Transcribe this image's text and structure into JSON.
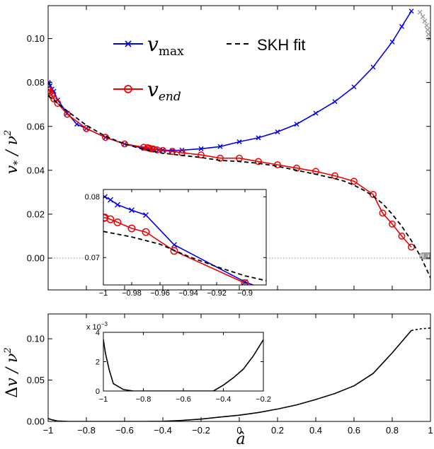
{
  "chart_data": [
    {
      "type": "line",
      "panel": "main",
      "ylabel": "v_* / ν²",
      "xlim": [
        -1,
        1
      ],
      "ylim": [
        -0.0145,
        0.115
      ],
      "xticks": [
        -1,
        -0.8,
        -0.6,
        -0.4,
        -0.2,
        0,
        0.2,
        0.4,
        0.6,
        0.8,
        1
      ],
      "yticks": [
        0.0,
        0.02,
        0.04,
        0.06,
        0.08,
        0.1
      ],
      "ytick_labels": [
        "0.00",
        "0.02",
        "0.04",
        "0.06",
        "0.08",
        "0.10"
      ],
      "reference_line": {
        "y": 0,
        "style": "dotted",
        "color": "#555555"
      },
      "legend": {
        "vmax_base": "v",
        "vmax_sub": "max",
        "vend_base": "v",
        "vend_sub": "end",
        "fit": "SKH fit"
      },
      "series": [
        {
          "key": "vmax",
          "color": "#0000ee",
          "marker": "x",
          "x": [
            -0.999,
            -0.995,
            -0.99,
            -0.98,
            -0.97,
            -0.95,
            -0.9,
            -0.85,
            -0.8,
            -0.7,
            -0.6,
            -0.5,
            -0.45,
            -0.42,
            -0.4,
            -0.35,
            -0.3,
            -0.2,
            -0.1,
            0.0,
            0.1,
            0.2,
            0.3,
            0.4,
            0.5,
            0.6,
            0.7,
            0.8,
            0.85,
            0.9
          ],
          "y": [
            0.08,
            0.0795,
            0.0785,
            0.077,
            0.076,
            0.072,
            0.066,
            0.061,
            0.059,
            0.055,
            0.052,
            0.05,
            0.0495,
            0.0493,
            0.0492,
            0.049,
            0.0492,
            0.0498,
            0.0508,
            0.053,
            0.0548,
            0.0575,
            0.061,
            0.066,
            0.0713,
            0.078,
            0.087,
            0.0985,
            0.1055,
            0.1125
          ]
        },
        {
          "key": "vend",
          "color": "#ee0000",
          "marker": "o",
          "x": [
            -0.999,
            -0.995,
            -0.99,
            -0.98,
            -0.97,
            -0.95,
            -0.9,
            -0.8,
            -0.7,
            -0.6,
            -0.5,
            -0.48,
            -0.47,
            -0.46,
            -0.45,
            -0.43,
            -0.4,
            -0.35,
            -0.3,
            -0.2,
            -0.1,
            0.0,
            0.1,
            0.2,
            0.3,
            0.4,
            0.5,
            0.6,
            0.7,
            0.75,
            0.8,
            0.85,
            0.9
          ],
          "y": [
            0.0765,
            0.0765,
            0.0755,
            0.074,
            0.0725,
            0.0705,
            0.0655,
            0.059,
            0.055,
            0.052,
            0.0505,
            0.0503,
            0.05,
            0.0498,
            0.0497,
            0.0493,
            0.049,
            0.0486,
            0.048,
            0.047,
            0.0455,
            0.0455,
            0.044,
            0.0425,
            0.041,
            0.0395,
            0.0375,
            0.035,
            0.029,
            0.0205,
            0.0155,
            0.01,
            0.005
          ]
        },
        {
          "key": "skh",
          "color": "#000000",
          "style": "dashed",
          "x": [
            -1.0,
            -0.95,
            -0.9,
            -0.8,
            -0.7,
            -0.6,
            -0.5,
            -0.4,
            -0.3,
            -0.2,
            -0.1,
            0.0,
            0.1,
            0.2,
            0.3,
            0.4,
            0.5,
            0.55,
            0.6,
            0.65,
            0.7,
            0.75,
            0.8,
            0.85,
            0.9,
            0.95,
            1.0
          ],
          "y": [
            0.074,
            0.0705,
            0.067,
            0.0605,
            0.0555,
            0.052,
            0.0495,
            0.0478,
            0.0468,
            0.0458,
            0.0445,
            0.044,
            0.0432,
            0.0418,
            0.04,
            0.0382,
            0.0362,
            0.035,
            0.0332,
            0.031,
            0.0282,
            0.0248,
            0.02,
            0.0145,
            0.008,
            0.0005,
            -0.009
          ]
        },
        {
          "key": "vmax_beyond",
          "color": "#999999",
          "marker": "x",
          "x": [
            0.945,
            0.96,
            0.97,
            0.98,
            0.985,
            0.99,
            0.995
          ],
          "y": [
            0.112,
            0.11,
            0.108,
            0.106,
            0.104,
            0.102,
            0.1
          ]
        },
        {
          "key": "vend_beyond",
          "color": "#999999",
          "marker": "o",
          "x": [
            0.96,
            0.97,
            0.98,
            0.985,
            0.99,
            0.995
          ],
          "y": [
            0.001,
            0.001,
            0.001,
            0.001,
            0.001,
            0.001
          ]
        }
      ]
    },
    {
      "type": "line",
      "panel": "inset-main",
      "xlim": [
        -1,
        -0.885
      ],
      "ylim": [
        0.0655,
        0.0812
      ],
      "xticks": [
        -1,
        -0.98,
        -0.96,
        -0.94,
        -0.92,
        -0.9
      ],
      "yticks": [
        0.07,
        0.08
      ],
      "ytick_labels": [
        "0.07",
        "0.08"
      ],
      "series": [
        {
          "key": "vmax",
          "color": "#0000ee",
          "marker": "x",
          "x": [
            -0.999,
            -0.995,
            -0.99,
            -0.98,
            -0.97,
            -0.95,
            -0.9,
            -0.885
          ],
          "y": [
            0.08,
            0.0795,
            0.0787,
            0.0778,
            0.077,
            0.0721,
            0.066,
            0.0647
          ]
        },
        {
          "key": "vend",
          "color": "#ee0000",
          "marker": "o",
          "x": [
            -0.9995,
            -0.999,
            -0.995,
            -0.99,
            -0.98,
            -0.97,
            -0.95,
            -0.9
          ],
          "y": [
            0.0765,
            0.0766,
            0.0763,
            0.0758,
            0.0748,
            0.0742,
            0.0711,
            0.0658
          ]
        },
        {
          "key": "skh",
          "color": "#000000",
          "style": "dashed",
          "x": [
            -1.0,
            -0.98,
            -0.96,
            -0.94,
            -0.92,
            -0.9,
            -0.885
          ],
          "y": [
            0.0743,
            0.0734,
            0.0722,
            0.0702,
            0.0685,
            0.067,
            0.0662
          ]
        }
      ]
    },
    {
      "type": "line",
      "panel": "bottom",
      "xlabel": "â",
      "ylabel": "Δv / ν²",
      "xlim": [
        -1,
        1
      ],
      "ylim": [
        0,
        0.13
      ],
      "xticks": [
        -1,
        -0.8,
        -0.6,
        -0.4,
        -0.2,
        0,
        0.2,
        0.4,
        0.6,
        0.8,
        1
      ],
      "xtick_labels": [
        "−1",
        "−0.8",
        "−0.6",
        "−0.4",
        "−0.2",
        "0",
        "0.2",
        "0.4",
        "0.6",
        "0.8",
        "1"
      ],
      "yticks": [
        0,
        0.05,
        0.1
      ],
      "ytick_labels": [
        "0.00",
        "0.05",
        "0.10"
      ],
      "series": [
        {
          "key": "dv",
          "color": "#000000",
          "x": [
            -1.0,
            -0.98,
            -0.95,
            -0.9,
            -0.8,
            -0.7,
            -0.6,
            -0.5,
            -0.4,
            -0.3,
            -0.2,
            -0.1,
            0.0,
            0.1,
            0.2,
            0.3,
            0.4,
            0.5,
            0.6,
            0.7,
            0.8,
            0.9
          ],
          "y": [
            0.0035,
            0.002,
            0.0005,
            0.0001,
            0.0,
            0.0,
            0.0,
            0.0,
            0.0002,
            0.0012,
            0.0028,
            0.0053,
            0.0075,
            0.0108,
            0.015,
            0.02,
            0.0265,
            0.0338,
            0.043,
            0.058,
            0.083,
            0.11
          ]
        },
        {
          "key": "dv_beyond",
          "color": "#000000",
          "style": "dashed",
          "x": [
            0.9,
            0.95,
            1.0
          ],
          "y": [
            0.11,
            0.112,
            0.113
          ]
        }
      ]
    },
    {
      "type": "line",
      "panel": "inset-bottom",
      "xlim": [
        -1,
        -0.2
      ],
      "ylim": [
        0,
        0.004
      ],
      "xticks": [
        -1,
        -0.8,
        -0.6,
        -0.4,
        -0.2
      ],
      "xtick_labels": [
        "−1",
        "−0.8",
        "−0.6",
        "−0.4",
        "−0.2"
      ],
      "yticks": [
        0,
        0.002,
        0.004
      ],
      "ytick_labels": [
        "0",
        "2",
        "4"
      ],
      "scale_label": "x 10",
      "scale_exp": "−3",
      "series": [
        {
          "key": "dv",
          "color": "#000000",
          "x": [
            -1.0,
            -0.99,
            -0.97,
            -0.95,
            -0.9,
            -0.85,
            -0.8,
            -0.7,
            -0.6,
            -0.5,
            -0.45,
            -0.4,
            -0.35,
            -0.3,
            -0.25,
            -0.2
          ],
          "y": [
            0.0035,
            0.0026,
            0.0014,
            0.0005,
            0.0001,
            0.0,
            0.0,
            0.0,
            0.0,
            0.0,
            0.0,
            0.0004,
            0.0009,
            0.0015,
            0.0024,
            0.0035
          ]
        }
      ]
    }
  ]
}
